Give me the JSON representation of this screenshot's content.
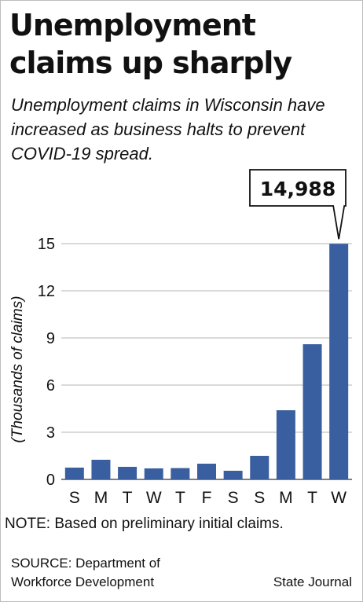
{
  "chart_data": {
    "type": "bar",
    "title": "Unemployment claims up sharply",
    "subtitle": "Unemployment claims in Wisconsin have increased as business halts to prevent COVID-19 spread.",
    "ylabel": "(Thousands of claims)",
    "xlabel": "",
    "categories": [
      "S",
      "M",
      "T",
      "W",
      "T",
      "F",
      "S",
      "S",
      "M",
      "T",
      "W"
    ],
    "values": [
      0.75,
      1.25,
      0.8,
      0.7,
      0.72,
      1.0,
      0.55,
      1.5,
      4.4,
      8.6,
      14.988
    ],
    "ylim": [
      0,
      15
    ],
    "yticks": [
      0,
      3,
      6,
      9,
      12,
      15
    ],
    "grid": true,
    "bar_color": "#3a5fa0",
    "callout": {
      "text": "14,988",
      "category_index": 10
    }
  },
  "note": "NOTE: Based on preliminary initial claims.",
  "source": "SOURCE: Department of Workforce Development",
  "credit": "State Journal"
}
